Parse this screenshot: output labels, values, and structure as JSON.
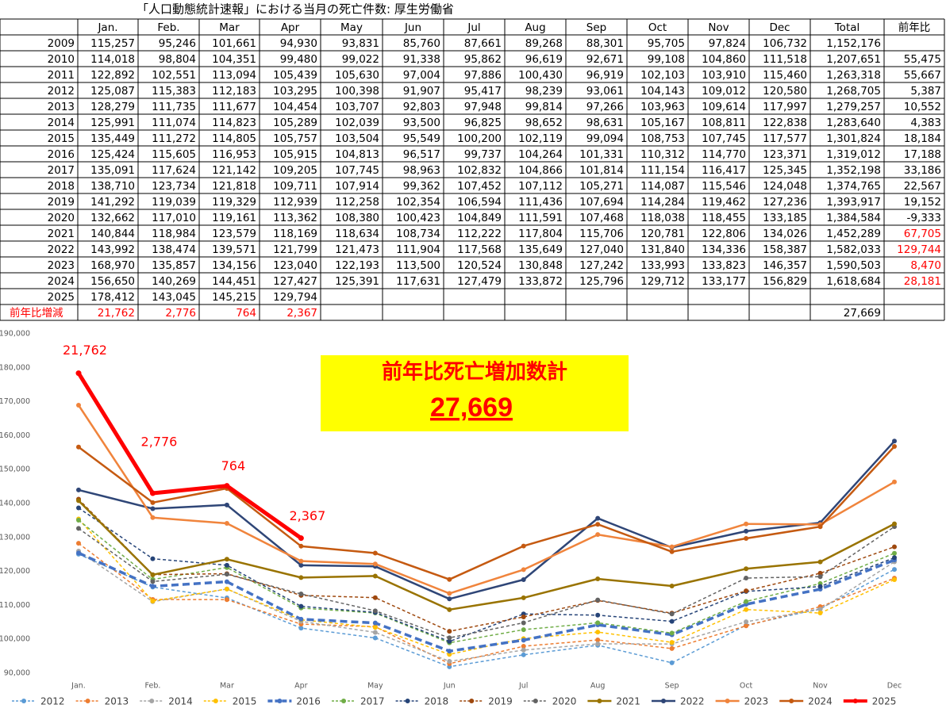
{
  "table": {
    "title": "「人口動態統計速報」における当月の死亡件数: 厚生労働省",
    "header": [
      null,
      "Jan.",
      "Feb.",
      "Mar",
      "Apr",
      "May",
      "Jun",
      "Jul",
      "Aug",
      "Sep",
      "Oct",
      "Nov",
      "Dec",
      "Total",
      "前年比"
    ],
    "rows": [
      [
        "2009",
        "115,257",
        "95,246",
        "101,661",
        "94,930",
        "93,831",
        "85,760",
        "87,661",
        "89,268",
        "88,301",
        "95,705",
        "97,824",
        "106,732",
        "1,152,176",
        null
      ],
      [
        "2010",
        "114,018",
        "98,804",
        "104,351",
        "99,480",
        "99,022",
        "91,338",
        "95,862",
        "96,619",
        "92,671",
        "99,108",
        "104,860",
        "111,518",
        "1,207,651",
        "55,475"
      ],
      [
        "2011",
        "122,892",
        "102,551",
        "113,094",
        "105,439",
        "105,630",
        "97,004",
        "97,886",
        "100,430",
        "96,919",
        "102,103",
        "103,910",
        "115,460",
        "1,263,318",
        "55,667"
      ],
      [
        "2012",
        "125,087",
        "115,383",
        "112,183",
        "103,295",
        "100,398",
        "91,907",
        "95,417",
        "98,239",
        "93,061",
        "104,143",
        "109,012",
        "120,580",
        "1,268,705",
        "5,387"
      ],
      [
        "2013",
        "128,279",
        "111,735",
        "111,677",
        "104,454",
        "103,707",
        "92,803",
        "97,948",
        "99,814",
        "97,266",
        "103,963",
        "109,614",
        "117,997",
        "1,279,257",
        "10,552"
      ],
      [
        "2014",
        "125,991",
        "111,074",
        "114,823",
        "105,289",
        "102,039",
        "93,500",
        "96,825",
        "98,652",
        "98,631",
        "105,167",
        "108,811",
        "122,838",
        "1,283,640",
        "4,383"
      ],
      [
        "2015",
        "135,449",
        "111,272",
        "114,805",
        "105,757",
        "103,504",
        "95,549",
        "100,200",
        "102,119",
        "99,094",
        "108,753",
        "107,745",
        "117,577",
        "1,301,824",
        "18,184"
      ],
      [
        "2016",
        "125,424",
        "115,605",
        "116,953",
        "105,915",
        "104,813",
        "96,517",
        "99,737",
        "104,264",
        "101,331",
        "110,312",
        "114,770",
        "123,371",
        "1,319,012",
        "17,188"
      ],
      [
        "2017",
        "135,091",
        "117,624",
        "121,142",
        "109,205",
        "107,745",
        "98,963",
        "102,832",
        "104,866",
        "101,814",
        "111,154",
        "116,417",
        "125,345",
        "1,352,198",
        "33,186"
      ],
      [
        "2018",
        "138,710",
        "123,734",
        "121,818",
        "109,711",
        "107,914",
        "99,362",
        "107,452",
        "107,112",
        "105,271",
        "114,087",
        "115,546",
        "124,048",
        "1,374,765",
        "22,567"
      ],
      [
        "2019",
        "141,292",
        "119,039",
        "119,329",
        "112,939",
        "112,258",
        "102,354",
        "106,594",
        "111,436",
        "107,694",
        "114,284",
        "119,462",
        "127,236",
        "1,393,917",
        "19,152"
      ],
      [
        "2020",
        "132,662",
        "117,010",
        "119,161",
        "113,362",
        "108,380",
        "100,423",
        "104,849",
        "111,591",
        "107,468",
        "118,038",
        "118,455",
        "133,185",
        "1,384,584",
        "-9,333"
      ],
      [
        "2021",
        "140,844",
        "118,984",
        "123,579",
        "118,169",
        "118,634",
        "108,734",
        "112,222",
        "117,804",
        "115,706",
        "120,781",
        "122,806",
        "134,026",
        "1,452,289",
        "67,705"
      ],
      [
        "2022",
        "143,992",
        "138,474",
        "139,571",
        "121,799",
        "121,473",
        "111,904",
        "117,568",
        "135,649",
        "127,040",
        "131,840",
        "134,336",
        "158,387",
        "1,582,033",
        "129,744"
      ],
      [
        "2023",
        "168,970",
        "135,857",
        "134,156",
        "123,040",
        "122,193",
        "113,500",
        "120,524",
        "130,848",
        "127,242",
        "133,993",
        "133,823",
        "146,357",
        "1,590,503",
        "8,470"
      ],
      [
        "2024",
        "156,650",
        "140,269",
        "144,451",
        "127,427",
        "125,391",
        "117,631",
        "127,479",
        "133,872",
        "125,796",
        "129,712",
        "133,177",
        "156,829",
        "1,618,684",
        "28,181"
      ],
      [
        "2025",
        "178,412",
        "143,045",
        "145,215",
        "129,794",
        null,
        null,
        null,
        null,
        null,
        null,
        null,
        null,
        null,
        null
      ],
      [
        "前年比増減",
        "21,762",
        "2,776",
        "764",
        "2,367",
        null,
        null,
        null,
        null,
        null,
        null,
        null,
        null,
        "27,669",
        null
      ]
    ]
  },
  "chart_data": {
    "type": "line",
    "categories": [
      "Jan.",
      "Feb.",
      "Mar",
      "Apr",
      "May",
      "Jun",
      "Jul",
      "Aug",
      "Sep",
      "Oct",
      "Nov",
      "Dec"
    ],
    "ylim": [
      90000,
      190000
    ],
    "yticks": [
      {
        "value": 90000,
        "label": "90,000"
      },
      {
        "value": 100000,
        "label": "100,000"
      },
      {
        "value": 110000,
        "label": "110,000"
      },
      {
        "value": 120000,
        "label": "120,000"
      },
      {
        "value": 130000,
        "label": "130,000"
      },
      {
        "value": 140000,
        "label": "140,000"
      },
      {
        "value": 150000,
        "label": "150,000"
      },
      {
        "value": 160000,
        "label": "160,000"
      },
      {
        "value": 170000,
        "label": "170,000"
      },
      {
        "value": 180000,
        "label": "180,000"
      },
      {
        "value": 190000,
        "label": "190,000"
      }
    ],
    "grid": false,
    "legend": "bottom",
    "series": [
      {
        "name": "2012",
        "color": "#5b9bd5",
        "style": "dashed",
        "width": 1.5,
        "values": [
          125087,
          115383,
          112183,
          103295,
          100398,
          91907,
          95417,
          98239,
          93061,
          104143,
          109012,
          120580
        ]
      },
      {
        "name": "2013",
        "color": "#ed7d31",
        "style": "dashed",
        "width": 1.5,
        "values": [
          128279,
          111735,
          111677,
          104454,
          103707,
          92803,
          97948,
          99814,
          97266,
          103963,
          109614,
          117997
        ]
      },
      {
        "name": "2014",
        "color": "#a5a5a5",
        "style": "dashed",
        "width": 1.5,
        "values": [
          125991,
          111074,
          114823,
          105289,
          102039,
          93500,
          96825,
          98652,
          98631,
          105167,
          108811,
          122838
        ]
      },
      {
        "name": "2015",
        "color": "#ffc000",
        "style": "dashed",
        "width": 1.5,
        "values": [
          135449,
          111272,
          114805,
          105757,
          103504,
          95549,
          100200,
          102119,
          99094,
          108753,
          107745,
          117577
        ]
      },
      {
        "name": "2016",
        "color": "#4472c4",
        "style": "dashed",
        "width": 3.5,
        "values": [
          125424,
          115605,
          116953,
          105915,
          104813,
          96517,
          99737,
          104264,
          101331,
          110312,
          114770,
          123371
        ]
      },
      {
        "name": "2017",
        "color": "#70ad47",
        "style": "dashed",
        "width": 1.5,
        "values": [
          135091,
          117624,
          121142,
          109205,
          107745,
          98963,
          102832,
          104866,
          101814,
          111154,
          116417,
          125345
        ]
      },
      {
        "name": "2018",
        "color": "#264478",
        "style": "dashed",
        "width": 1.5,
        "values": [
          138710,
          123734,
          121818,
          109711,
          107914,
          99362,
          107452,
          107112,
          105271,
          114087,
          115546,
          124048
        ]
      },
      {
        "name": "2019",
        "color": "#9e480e",
        "style": "dashed",
        "width": 1.5,
        "values": [
          141292,
          119039,
          119329,
          112939,
          112258,
          102354,
          106594,
          111436,
          107694,
          114284,
          119462,
          127236
        ]
      },
      {
        "name": "2020",
        "color": "#636363",
        "style": "dashed",
        "width": 1.5,
        "values": [
          132662,
          117010,
          119161,
          113362,
          108380,
          100423,
          104849,
          111591,
          107468,
          118038,
          118455,
          133185
        ]
      },
      {
        "name": "2021",
        "color": "#997300",
        "style": "solid",
        "width": 2.5,
        "values": [
          140844,
          118984,
          123579,
          118169,
          118634,
          108734,
          112222,
          117804,
          115706,
          120781,
          122806,
          134026
        ]
      },
      {
        "name": "2022",
        "color": "#2f4677",
        "style": "solid",
        "width": 2.5,
        "values": [
          143992,
          138474,
          139571,
          121799,
          121473,
          111904,
          117568,
          135649,
          127040,
          131840,
          134336,
          158387
        ]
      },
      {
        "name": "2023",
        "color": "#f0843c",
        "style": "solid",
        "width": 2.5,
        "values": [
          168970,
          135857,
          134156,
          123040,
          122193,
          113500,
          120524,
          130848,
          127242,
          133993,
          133823,
          146357
        ]
      },
      {
        "name": "2024",
        "color": "#c55a11",
        "style": "solid",
        "width": 2.5,
        "values": [
          156650,
          140269,
          144451,
          127427,
          125391,
          117631,
          127479,
          133872,
          125796,
          129712,
          133177,
          156829
        ]
      },
      {
        "name": "2025",
        "color": "#ff0000",
        "style": "solid",
        "width": 5,
        "values": [
          178412,
          143045,
          145215,
          129794,
          null,
          null,
          null,
          null,
          null,
          null,
          null,
          null
        ]
      }
    ],
    "annotations": [
      "21,762",
      "2,776",
      "764",
      "2,367"
    ],
    "callout": {
      "title": "前年比死亡増加数計",
      "value": "27,669"
    }
  }
}
